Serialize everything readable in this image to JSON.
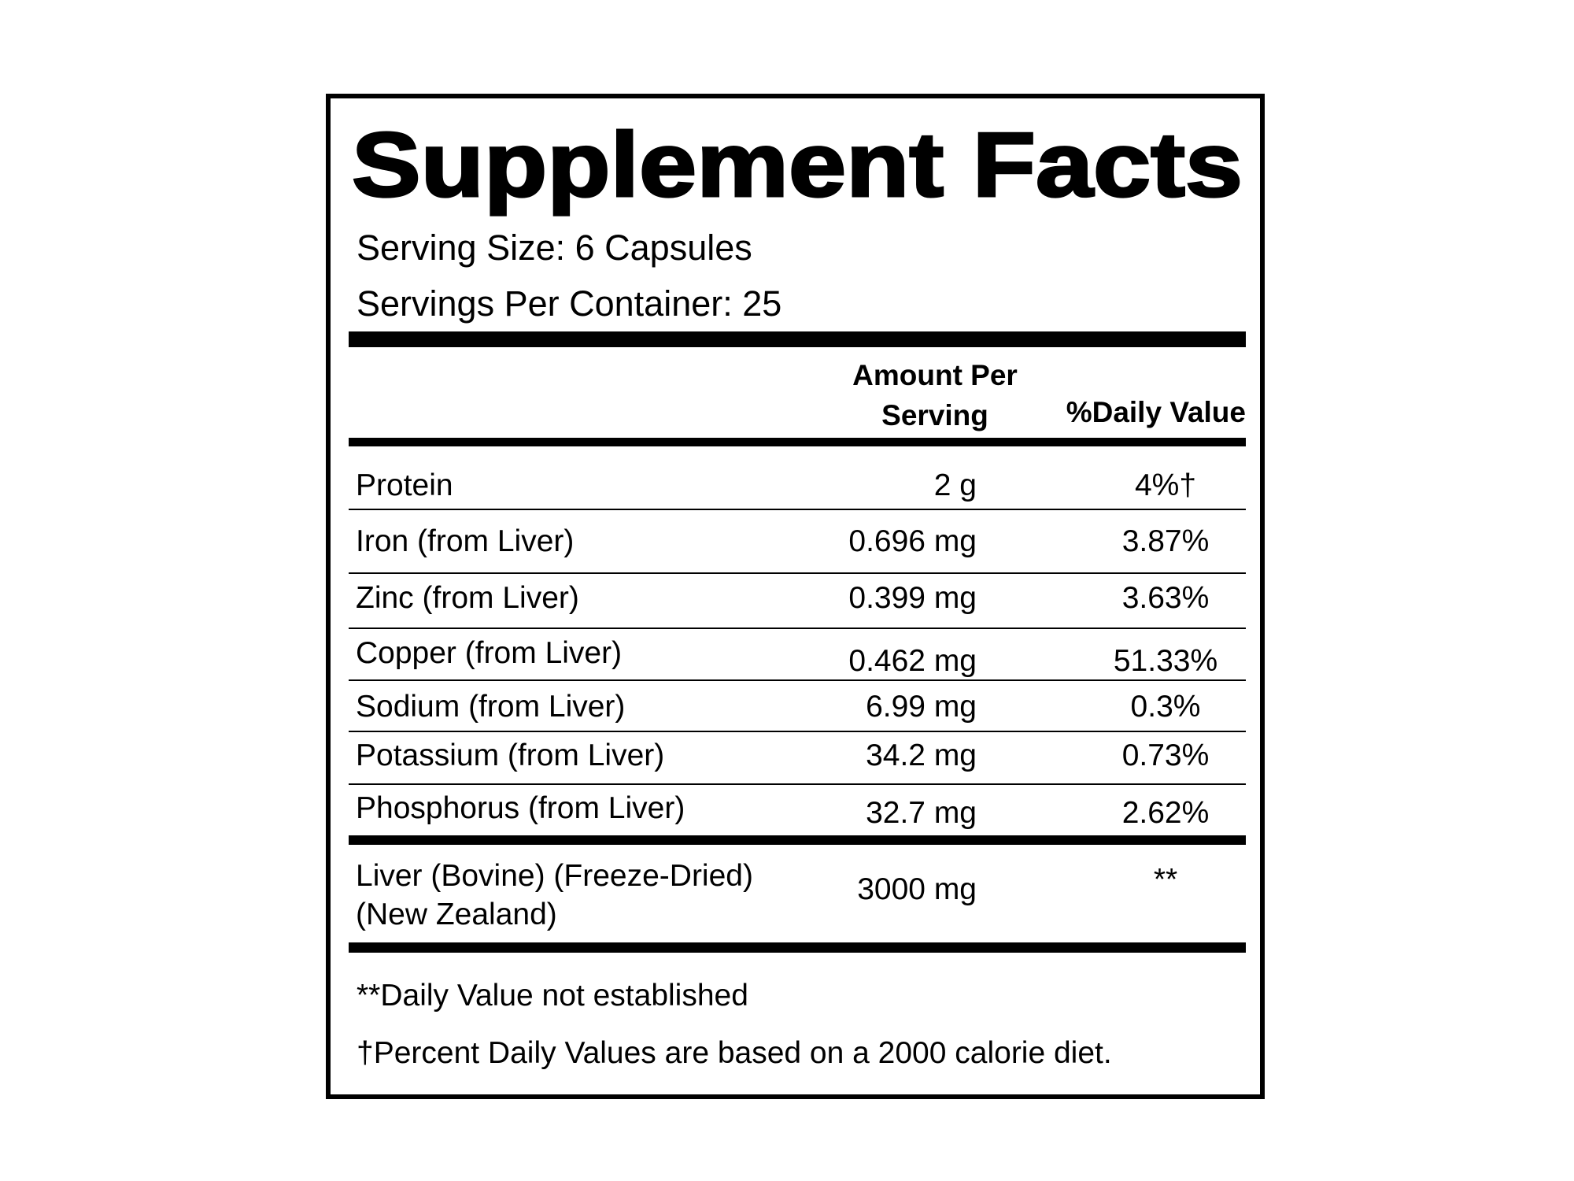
{
  "header": {
    "title": "Supplement Facts",
    "serving_size": "Serving Size: 6 Capsules",
    "servings_per_container": "Servings Per Container: 25"
  },
  "table": {
    "column_headers": {
      "amount": [
        "Amount Per",
        "Serving"
      ],
      "daily_value": "%Daily Value"
    },
    "rows": [
      [
        [
          "Protein"
        ],
        "2 g",
        "4%†"
      ],
      [
        [
          "Iron (from Liver)"
        ],
        "0.696 mg",
        "3.87%"
      ],
      [
        [
          "Zinc (from Liver)"
        ],
        "0.399 mg",
        "3.63%"
      ],
      [
        [
          "Copper (from Liver)"
        ],
        "0.462 mg",
        "51.33%"
      ],
      [
        [
          "Sodium (from Liver)"
        ],
        "6.99 mg",
        "0.3%"
      ],
      [
        [
          "Potassium (from Liver)"
        ],
        "34.2 mg",
        "0.73%"
      ],
      [
        [
          "Phosphorus (from Liver)"
        ],
        "32.7 mg",
        "2.62%"
      ],
      [
        [
          "Liver (Bovine) (Freeze-Dried)",
          "(New Zealand)"
        ],
        "3000 mg",
        "**"
      ]
    ]
  },
  "footnotes": [
    "**Daily Value not established",
    "†Percent Daily Values are based on a 2000 calorie diet."
  ]
}
